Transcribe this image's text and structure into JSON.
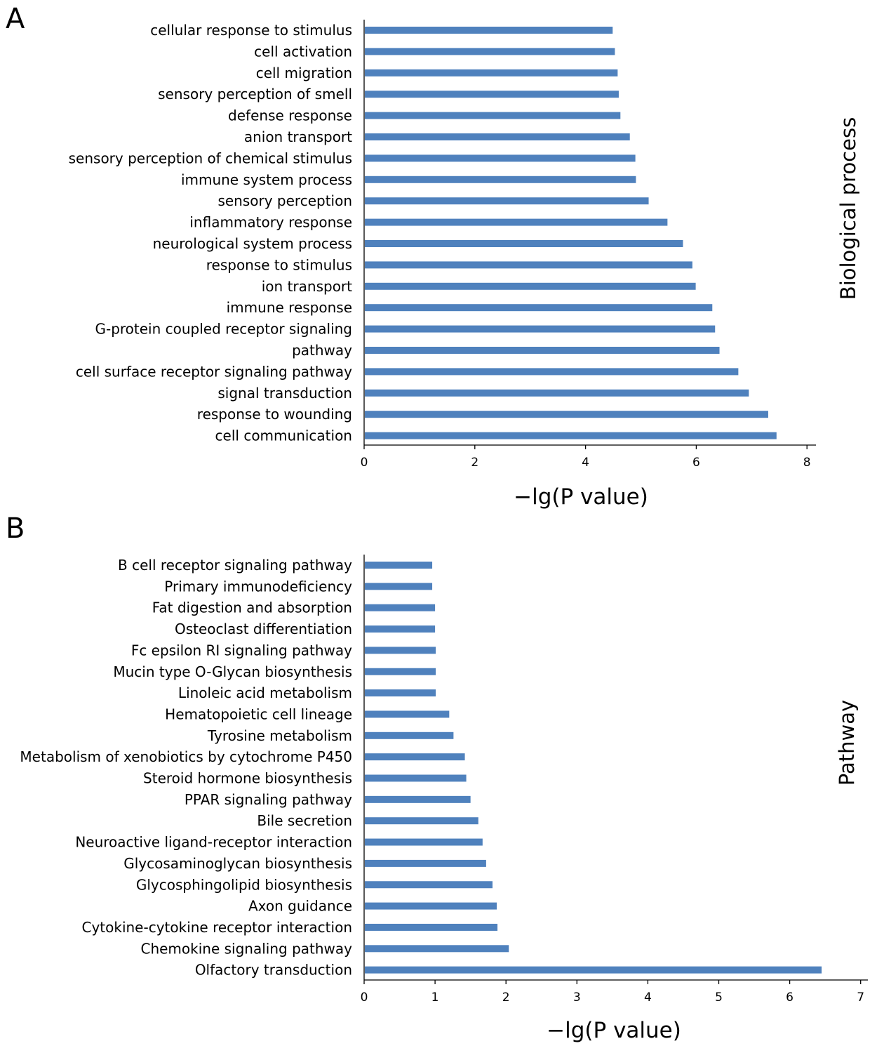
{
  "chart_data": [
    {
      "panel_label": "A",
      "type": "bar",
      "orientation": "horizontal",
      "categories": [
        "cellular response to stimulus",
        "cell activation",
        "cell migration",
        "sensory perception of smell",
        "defense response",
        "anion transport",
        "sensory perception of chemical stimulus",
        "immune system process",
        "sensory perception",
        "inflammatory response",
        "neurological system process",
        "response to stimulus",
        "ion transport",
        "immune response",
        "G-protein coupled receptor signaling",
        "pathway",
        "cell surface receptor signaling pathway",
        "signal transduction",
        "response to wounding",
        "cell communication"
      ],
      "values": [
        4.49,
        4.53,
        4.58,
        4.6,
        4.63,
        4.8,
        4.9,
        4.91,
        5.14,
        5.48,
        5.76,
        5.93,
        5.99,
        6.29,
        6.34,
        6.42,
        6.76,
        6.95,
        7.3,
        7.45
      ],
      "xlabel": "−lg(P value)",
      "ylabel": "Biological process",
      "xlim": [
        0,
        8
      ],
      "xticks": [
        "0",
        "2",
        "4",
        "6",
        "8"
      ],
      "color": "#4f81bd",
      "grid": false
    },
    {
      "panel_label": "B",
      "type": "bar",
      "orientation": "horizontal",
      "categories": [
        "B cell receptor signaling pathway",
        "Primary immunodeficiency",
        "Fat digestion and absorption",
        "Osteoclast differentiation",
        "Fc epsilon RI signaling pathway",
        "Mucin type O-Glycan biosynthesis",
        "Linoleic acid metabolism",
        "Hematopoietic cell lineage",
        "Tyrosine metabolism",
        "Metabolism of xenobiotics by cytochrome P450",
        "Steroid hormone biosynthesis",
        "PPAR signaling pathway",
        "Bile secretion",
        "Neuroactive ligand-receptor interaction",
        "Glycosaminoglycan biosynthesis",
        "Glycosphingolipid biosynthesis",
        "Axon guidance",
        "Cytokine-cytokine receptor interaction",
        "Chemokine signaling pathway",
        "Olfactory transduction"
      ],
      "values": [
        0.96,
        0.96,
        1.0,
        1.0,
        1.01,
        1.01,
        1.01,
        1.2,
        1.26,
        1.42,
        1.44,
        1.5,
        1.61,
        1.67,
        1.72,
        1.81,
        1.87,
        1.88,
        2.04,
        6.45
      ],
      "xlabel": "−lg(P value)",
      "ylabel": "Pathway",
      "xlim": [
        0,
        7
      ],
      "xticks": [
        "0",
        "1",
        "2",
        "3",
        "4",
        "5",
        "6",
        "7"
      ],
      "color": "#4f81bd",
      "grid": false
    }
  ]
}
